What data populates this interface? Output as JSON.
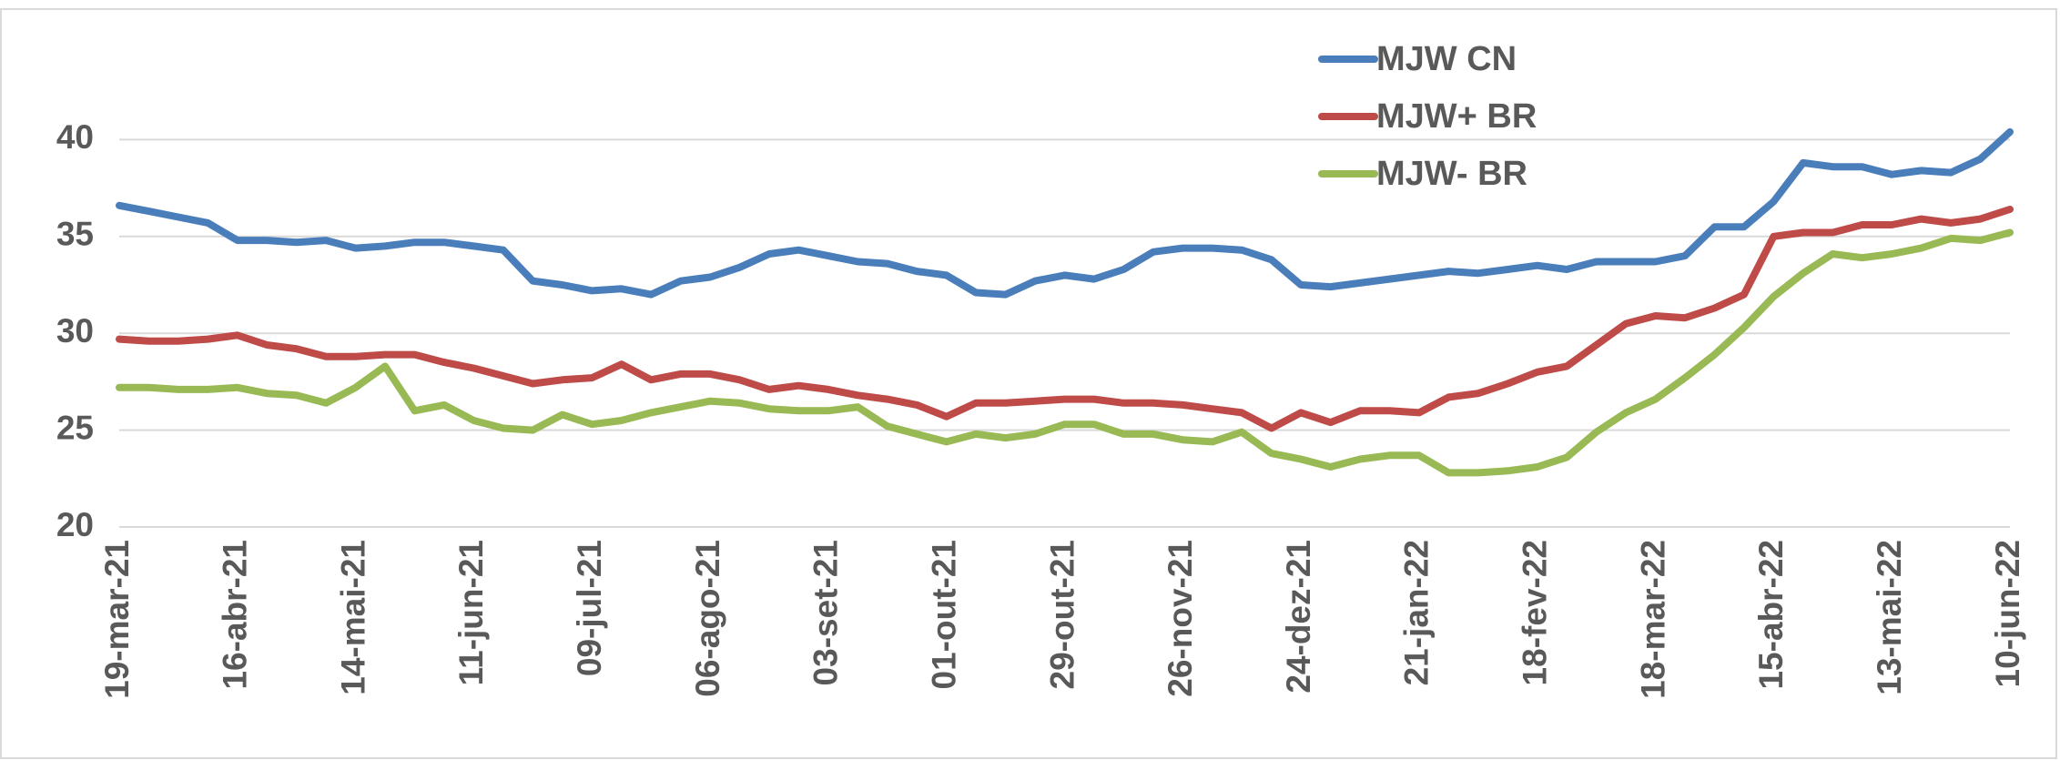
{
  "chart_data": {
    "type": "line",
    "categories": [
      "19-mar-21",
      null,
      null,
      null,
      "16-abr-21",
      null,
      null,
      null,
      "14-mai-21",
      null,
      null,
      null,
      "11-jun-21",
      null,
      null,
      null,
      "09-jul-21",
      null,
      null,
      null,
      "06-ago-21",
      null,
      null,
      null,
      "03-set-21",
      null,
      null,
      null,
      "01-out-21",
      null,
      null,
      null,
      "29-out-21",
      null,
      null,
      null,
      "26-nov-21",
      null,
      null,
      null,
      "24-dez-21",
      null,
      null,
      null,
      "21-jan-22",
      null,
      null,
      null,
      "18-fev-22",
      null,
      null,
      null,
      "18-mar-22",
      null,
      null,
      null,
      "15-abr-22",
      null,
      null,
      null,
      "13-mai-22",
      null,
      null,
      null,
      "10-jun-22"
    ],
    "series": [
      {
        "name": "MJW CN",
        "color": "#4a7ebb",
        "values": [
          36.6,
          36.3,
          36.0,
          35.7,
          34.8,
          34.8,
          34.7,
          34.8,
          34.4,
          34.5,
          34.7,
          34.7,
          34.5,
          34.3,
          32.7,
          32.5,
          32.2,
          32.3,
          32.0,
          32.7,
          32.9,
          33.4,
          34.1,
          34.3,
          34.0,
          33.7,
          33.6,
          33.2,
          33.0,
          32.1,
          32.0,
          32.7,
          33.0,
          32.8,
          33.3,
          34.2,
          34.4,
          34.4,
          34.3,
          33.8,
          32.5,
          32.4,
          32.6,
          32.8,
          33.0,
          33.2,
          33.1,
          33.3,
          33.5,
          33.3,
          33.7,
          33.7,
          33.7,
          34.0,
          35.5,
          35.5,
          36.8,
          38.8,
          38.6,
          38.6,
          38.2,
          38.4,
          38.3,
          39.0,
          40.4
        ]
      },
      {
        "name": "MJW+ BR",
        "color": "#be4b48",
        "values": [
          29.7,
          29.6,
          29.6,
          29.7,
          29.9,
          29.4,
          29.2,
          28.8,
          28.8,
          28.9,
          28.9,
          28.5,
          28.2,
          27.8,
          27.4,
          27.6,
          27.7,
          28.4,
          27.6,
          27.9,
          27.9,
          27.6,
          27.1,
          27.3,
          27.1,
          26.8,
          26.6,
          26.3,
          25.7,
          26.4,
          26.4,
          26.5,
          26.6,
          26.6,
          26.4,
          26.4,
          26.3,
          26.1,
          25.9,
          25.1,
          25.9,
          25.4,
          26.0,
          26.0,
          25.9,
          26.7,
          26.9,
          27.4,
          28.0,
          28.3,
          29.4,
          30.5,
          30.9,
          30.8,
          31.3,
          32.0,
          35.0,
          35.2,
          35.2,
          35.6,
          35.6,
          35.9,
          35.7,
          35.9,
          36.4
        ]
      },
      {
        "name": "MJW- BR",
        "color": "#98b954",
        "values": [
          27.2,
          27.2,
          27.1,
          27.1,
          27.2,
          26.9,
          26.8,
          26.4,
          27.2,
          28.3,
          26.0,
          26.3,
          25.5,
          25.1,
          25.0,
          25.8,
          25.3,
          25.5,
          25.9,
          26.2,
          26.5,
          26.4,
          26.1,
          26.0,
          26.0,
          26.2,
          25.2,
          24.8,
          24.4,
          24.8,
          24.6,
          24.8,
          25.3,
          25.3,
          24.8,
          24.8,
          24.5,
          24.4,
          24.9,
          23.8,
          23.5,
          23.1,
          23.5,
          23.7,
          23.7,
          22.8,
          22.8,
          22.9,
          23.1,
          23.6,
          24.9,
          25.9,
          26.6,
          27.7,
          28.9,
          30.3,
          31.9,
          33.1,
          34.1,
          33.9,
          34.1,
          34.4,
          34.9,
          34.8,
          35.2
        ]
      }
    ],
    "ylim": [
      20,
      45
    ],
    "yticks": [
      20,
      25,
      30,
      35,
      40
    ],
    "grid": true,
    "legend": "top-right"
  }
}
